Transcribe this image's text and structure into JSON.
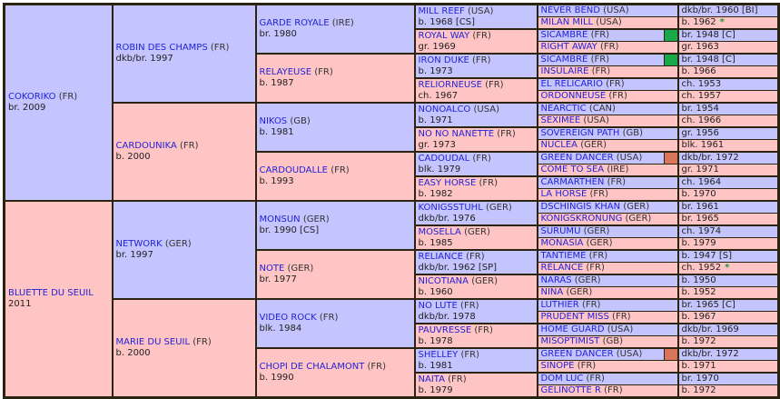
{
  "colors": {
    "male": "#c4c4ff",
    "female": "#ffc4c4",
    "border": "#2b2410",
    "name": "#2323d8",
    "marker_green": "#1aa84a",
    "marker_orange": "#d9755a",
    "star": "#1a9a3a"
  },
  "gen1": [
    {
      "name": "COKORIKO",
      "country": "(FR)",
      "info": "br. 2009"
    },
    {
      "name": "BLUETTE DU SEUIL",
      "country": "",
      "info": "2011"
    }
  ],
  "gen2": [
    {
      "name": "ROBIN DES CHAMPS",
      "country": "(FR)",
      "info": "dkb/br. 1997"
    },
    {
      "name": "CARDOUNIKA",
      "country": "(FR)",
      "info": "b. 2000"
    },
    {
      "name": "NETWORK",
      "country": "(GER)",
      "info": "br. 1997"
    },
    {
      "name": "MARIE DU SEUIL",
      "country": "(FR)",
      "info": "b. 2000"
    }
  ],
  "gen3": [
    {
      "name": "GARDE ROYALE",
      "country": "(IRE)",
      "info": "br. 1980"
    },
    {
      "name": "RELAYEUSE",
      "country": "(FR)",
      "info": "b. 1987"
    },
    {
      "name": "NIKOS",
      "country": "(GB)",
      "info": "b. 1981"
    },
    {
      "name": "CARDOUDALLE",
      "country": "(FR)",
      "info": "b. 1993"
    },
    {
      "name": "MONSUN",
      "country": "(GER)",
      "info": "br. 1990 [CS]"
    },
    {
      "name": "NOTE",
      "country": "(GER)",
      "info": "br. 1977"
    },
    {
      "name": "VIDEO ROCK",
      "country": "(FR)",
      "info": "blk. 1984"
    },
    {
      "name": "CHOPI DE CHALAMONT",
      "country": "(FR)",
      "info": "b. 1990"
    }
  ],
  "gen4": [
    {
      "name": "MILL REEF",
      "country": "(USA)",
      "info": "b. 1968 [CS]"
    },
    {
      "name": "ROYAL WAY",
      "country": "(FR)",
      "info": "gr. 1969"
    },
    {
      "name": "IRON DUKE",
      "country": "(FR)",
      "info": "b. 1973"
    },
    {
      "name": "RELIORNEUSE",
      "country": "(FR)",
      "info": "ch. 1967"
    },
    {
      "name": "NONOALCO",
      "country": "(USA)",
      "info": "b. 1971"
    },
    {
      "name": "NO NO NANETTE",
      "country": "(FR)",
      "info": "gr. 1973"
    },
    {
      "name": "CADOUDAL",
      "country": "(FR)",
      "info": "blk. 1979"
    },
    {
      "name": "EASY HORSE",
      "country": "(FR)",
      "info": "b. 1982"
    },
    {
      "name": "KONIGSSTUHL",
      "country": "(GER)",
      "info": "dkb/br. 1976"
    },
    {
      "name": "MOSELLA",
      "country": "(GER)",
      "info": "b. 1985"
    },
    {
      "name": "RELIANCE",
      "country": "(FR)",
      "info": "dkb/br. 1962 [SP]"
    },
    {
      "name": "NICOTIANA",
      "country": "(GER)",
      "info": "b. 1960"
    },
    {
      "name": "NO LUTE",
      "country": "(FR)",
      "info": "dkb/br. 1978"
    },
    {
      "name": "PAUVRESSE",
      "country": "(FR)",
      "info": "b. 1978"
    },
    {
      "name": "SHELLEY",
      "country": "(FR)",
      "info": "b. 1981"
    },
    {
      "name": "NAITA",
      "country": "(FR)",
      "info": "b. 1979"
    }
  ],
  "gen5": [
    {
      "name": "NEVER BEND",
      "country": "(USA)",
      "info": "dkb/br. 1960 [BI]"
    },
    {
      "name": "MILAN MILL",
      "country": "(USA)",
      "info": "b. 1962",
      "star": "*"
    },
    {
      "name": "SICAMBRE",
      "country": "(FR)",
      "info": "br. 1948 [C]",
      "marker": "green"
    },
    {
      "name": "RIGHT AWAY",
      "country": "(FR)",
      "info": "gr. 1963"
    },
    {
      "name": "SICAMBRE",
      "country": "(FR)",
      "info": "br. 1948 [C]",
      "marker": "green"
    },
    {
      "name": "INSULAIRE",
      "country": "(FR)",
      "info": "b. 1966"
    },
    {
      "name": "EL RELICARIO",
      "country": "(FR)",
      "info": "ch. 1953"
    },
    {
      "name": "ORDONNEUSE",
      "country": "(FR)",
      "info": "ch. 1957"
    },
    {
      "name": "NEARCTIC",
      "country": "(CAN)",
      "info": "br. 1954"
    },
    {
      "name": "SEXIMEE",
      "country": "(USA)",
      "info": "ch. 1966"
    },
    {
      "name": "SOVEREIGN PATH",
      "country": "(GB)",
      "info": "gr. 1956"
    },
    {
      "name": "NUCLEA",
      "country": "(GER)",
      "info": "blk. 1961"
    },
    {
      "name": "GREEN DANCER",
      "country": "(USA)",
      "info": "dkb/br. 1972",
      "marker": "orange"
    },
    {
      "name": "COME TO SEA",
      "country": "(IRE)",
      "info": "gr. 1971"
    },
    {
      "name": "CARMARTHEN",
      "country": "(FR)",
      "info": "ch. 1964"
    },
    {
      "name": "LA HORSE",
      "country": "(FR)",
      "info": "b. 1970"
    },
    {
      "name": "DSCHINGIS KHAN",
      "country": "(GER)",
      "info": "br. 1961"
    },
    {
      "name": "KONIGSKRONUNG",
      "country": "(GER)",
      "info": "br. 1965"
    },
    {
      "name": "SURUMU",
      "country": "(GER)",
      "info": "ch. 1974"
    },
    {
      "name": "MONASIA",
      "country": "(GER)",
      "info": "b. 1979"
    },
    {
      "name": "TANTIEME",
      "country": "(FR)",
      "info": "b. 1947 [S]"
    },
    {
      "name": "RELANCE",
      "country": "(FR)",
      "info": "ch. 1952",
      "star": "*"
    },
    {
      "name": "NARAS",
      "country": "(GER)",
      "info": "b. 1950"
    },
    {
      "name": "NINA",
      "country": "(GER)",
      "info": "b. 1952"
    },
    {
      "name": "LUTHIER",
      "country": "(FR)",
      "info": "br. 1965 [C]"
    },
    {
      "name": "PRUDENT MISS",
      "country": "(FR)",
      "info": "b. 1967"
    },
    {
      "name": "HOME GUARD",
      "country": "(USA)",
      "info": "dkb/br. 1969"
    },
    {
      "name": "MISOPTIMIST",
      "country": "(GB)",
      "info": "b. 1972"
    },
    {
      "name": "GREEN DANCER",
      "country": "(USA)",
      "info": "dkb/br. 1972",
      "marker": "orange"
    },
    {
      "name": "SINOPE",
      "country": "(FR)",
      "info": "b. 1971"
    },
    {
      "name": "DOM LUC",
      "country": "(FR)",
      "info": "br. 1970"
    },
    {
      "name": "GELINOTTE R",
      "country": "(FR)",
      "info": "b. 1972"
    }
  ]
}
